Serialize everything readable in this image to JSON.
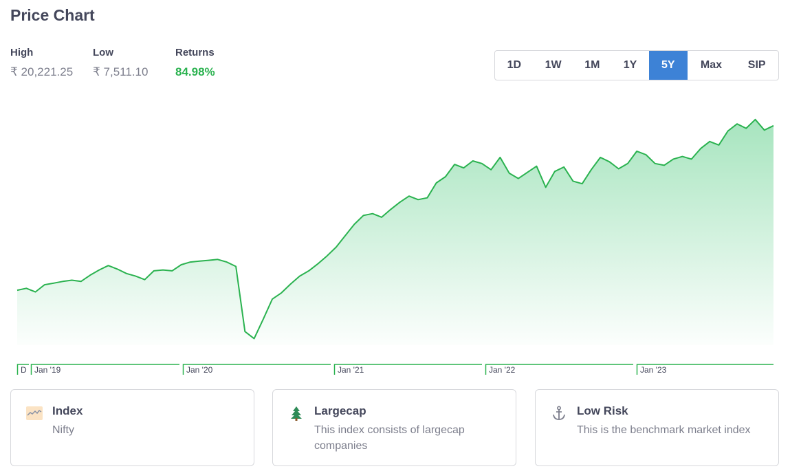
{
  "title": "Price Chart",
  "stats": {
    "high": {
      "label": "High",
      "value": "₹ 20,221.25"
    },
    "low": {
      "label": "Low",
      "value": "₹ 7,511.10"
    },
    "returns": {
      "label": "Returns",
      "value": "84.98%"
    }
  },
  "ranges": [
    "1D",
    "1W",
    "1M",
    "1Y",
    "5Y",
    "Max",
    "SIP"
  ],
  "active_range": "5Y",
  "colors": {
    "line": "#2ab24f",
    "fill": "#5fcf8a",
    "active": "#3d82d6",
    "returns": "#2ab24f"
  },
  "chart_data": {
    "type": "area",
    "x_tick_labels": [
      "D",
      "Jan '19",
      "Jan '20",
      "Jan '21",
      "Jan '22",
      "Jan '23"
    ],
    "grid": false,
    "series": [
      {
        "values": [
          10450,
          10560,
          10350,
          10760,
          10850,
          10950,
          11020,
          10950,
          11300,
          11600,
          11850,
          11650,
          11400,
          11250,
          11050,
          11550,
          11600,
          11550,
          11900,
          12050,
          12100,
          12150,
          12200,
          12050,
          11800,
          8100,
          7700,
          8800,
          9950,
          10300,
          10800,
          11250,
          11550,
          11950,
          12400,
          12900,
          13550,
          14200,
          14700,
          14800,
          14600,
          15050,
          15450,
          15800,
          15600,
          15700,
          16550,
          16900,
          17600,
          17400,
          17800,
          17650,
          17300,
          18000,
          17100,
          16800,
          17150,
          17500,
          16300,
          17200,
          17450,
          16650,
          16500,
          17300,
          18000,
          17750,
          17350,
          17650,
          18350,
          18150,
          17650,
          17550,
          17900,
          18050,
          17900,
          18500,
          18900,
          18700,
          19500,
          19900,
          19650,
          20150,
          19550,
          19800
        ]
      }
    ]
  },
  "cards": [
    {
      "icon": "chart-line-icon",
      "title": "Index",
      "desc": "Nifty"
    },
    {
      "icon": "tree-icon",
      "title": "Largecap",
      "desc": "This index consists of largecap companies"
    },
    {
      "icon": "anchor-icon",
      "title": "Low Risk",
      "desc": "This is the benchmark market index"
    }
  ]
}
